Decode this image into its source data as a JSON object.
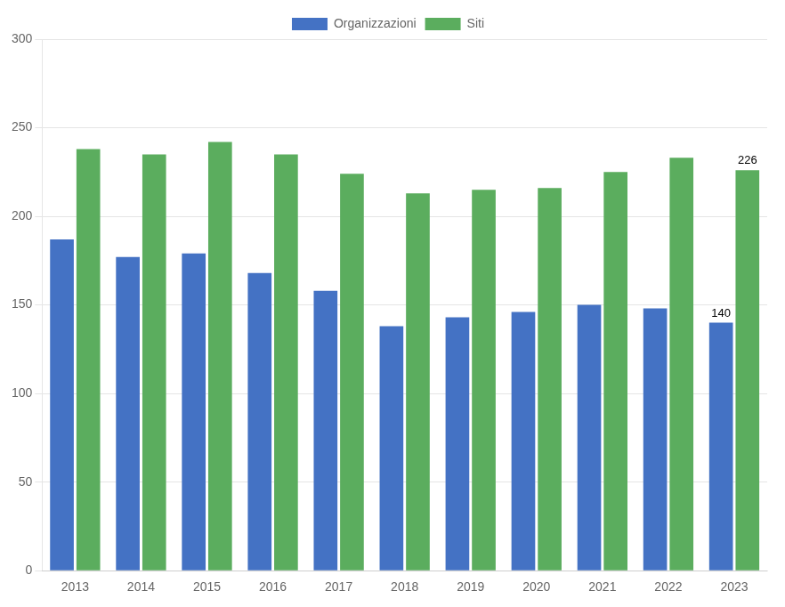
{
  "chart_data": {
    "type": "bar",
    "categories": [
      "2013",
      "2014",
      "2015",
      "2016",
      "2017",
      "2018",
      "2019",
      "2020",
      "2021",
      "2022",
      "2023"
    ],
    "series": [
      {
        "name": "Organizzazioni",
        "color": "#4472C4",
        "values": [
          187,
          177,
          179,
          168,
          158,
          138,
          143,
          146,
          150,
          148,
          140
        ]
      },
      {
        "name": "Siti",
        "color": "#5BAD5E",
        "values": [
          238,
          235,
          242,
          235,
          224,
          213,
          215,
          216,
          225,
          233,
          226
        ]
      }
    ],
    "annotations": [
      {
        "text": "140",
        "category": "2023",
        "series": "Organizzazioni",
        "value": 140
      },
      {
        "text": "226",
        "category": "2023",
        "series": "Siti",
        "value": 226
      }
    ],
    "ylim": [
      0,
      300
    ],
    "yticks": [
      0,
      50,
      100,
      150,
      200,
      250,
      300
    ],
    "grid": true,
    "legend": "upper center"
  }
}
